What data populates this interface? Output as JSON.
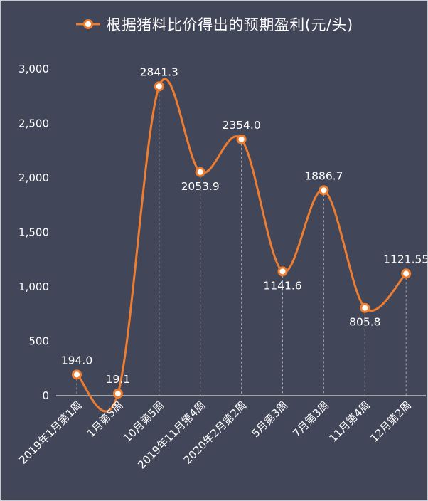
{
  "chart_data": {
    "type": "line",
    "title": "",
    "legend": [
      "根据猪料比价得出的预期盈利(元/头)"
    ],
    "legend_position": "top",
    "xlabel": "",
    "ylabel": "",
    "ylim": [
      0,
      3000
    ],
    "yticks": [
      0,
      500,
      1000,
      1500,
      2000,
      2500,
      3000
    ],
    "ytick_labels": [
      "0",
      "500",
      "1,000",
      "1,500",
      "2,000",
      "2,500",
      "3,000"
    ],
    "grid": false,
    "smooth": true,
    "categories": [
      "2019年1月第1周",
      "1月第5周",
      "10月第5周",
      "2019年11月第4周",
      "2020年2月第2周",
      "5月第3周",
      "7月第3周",
      "11月第4周",
      "12月第2周"
    ],
    "series": [
      {
        "name": "根据猪料比价得出的预期盈利(元/头)",
        "color": "#ed7d31",
        "values": [
          194.0,
          19.1,
          2841.3,
          2053.9,
          2354.0,
          1141.6,
          1886.7,
          805.8,
          1121.55
        ],
        "labels": [
          "194.0",
          "19.1",
          "2841.3",
          "2053.9",
          "2354.0",
          "1141.6",
          "1886.7",
          "805.8",
          "1121.55"
        ],
        "label_position": [
          "above",
          "above",
          "above",
          "below",
          "above",
          "below",
          "above",
          "below",
          "above"
        ]
      }
    ]
  },
  "colors": {
    "background": "#424659",
    "line": "#ed7d31",
    "marker_fill": "#ffffff",
    "text": "#ffffff",
    "axis": "#d9d9d9",
    "drop_line": "#a6a6a6"
  }
}
